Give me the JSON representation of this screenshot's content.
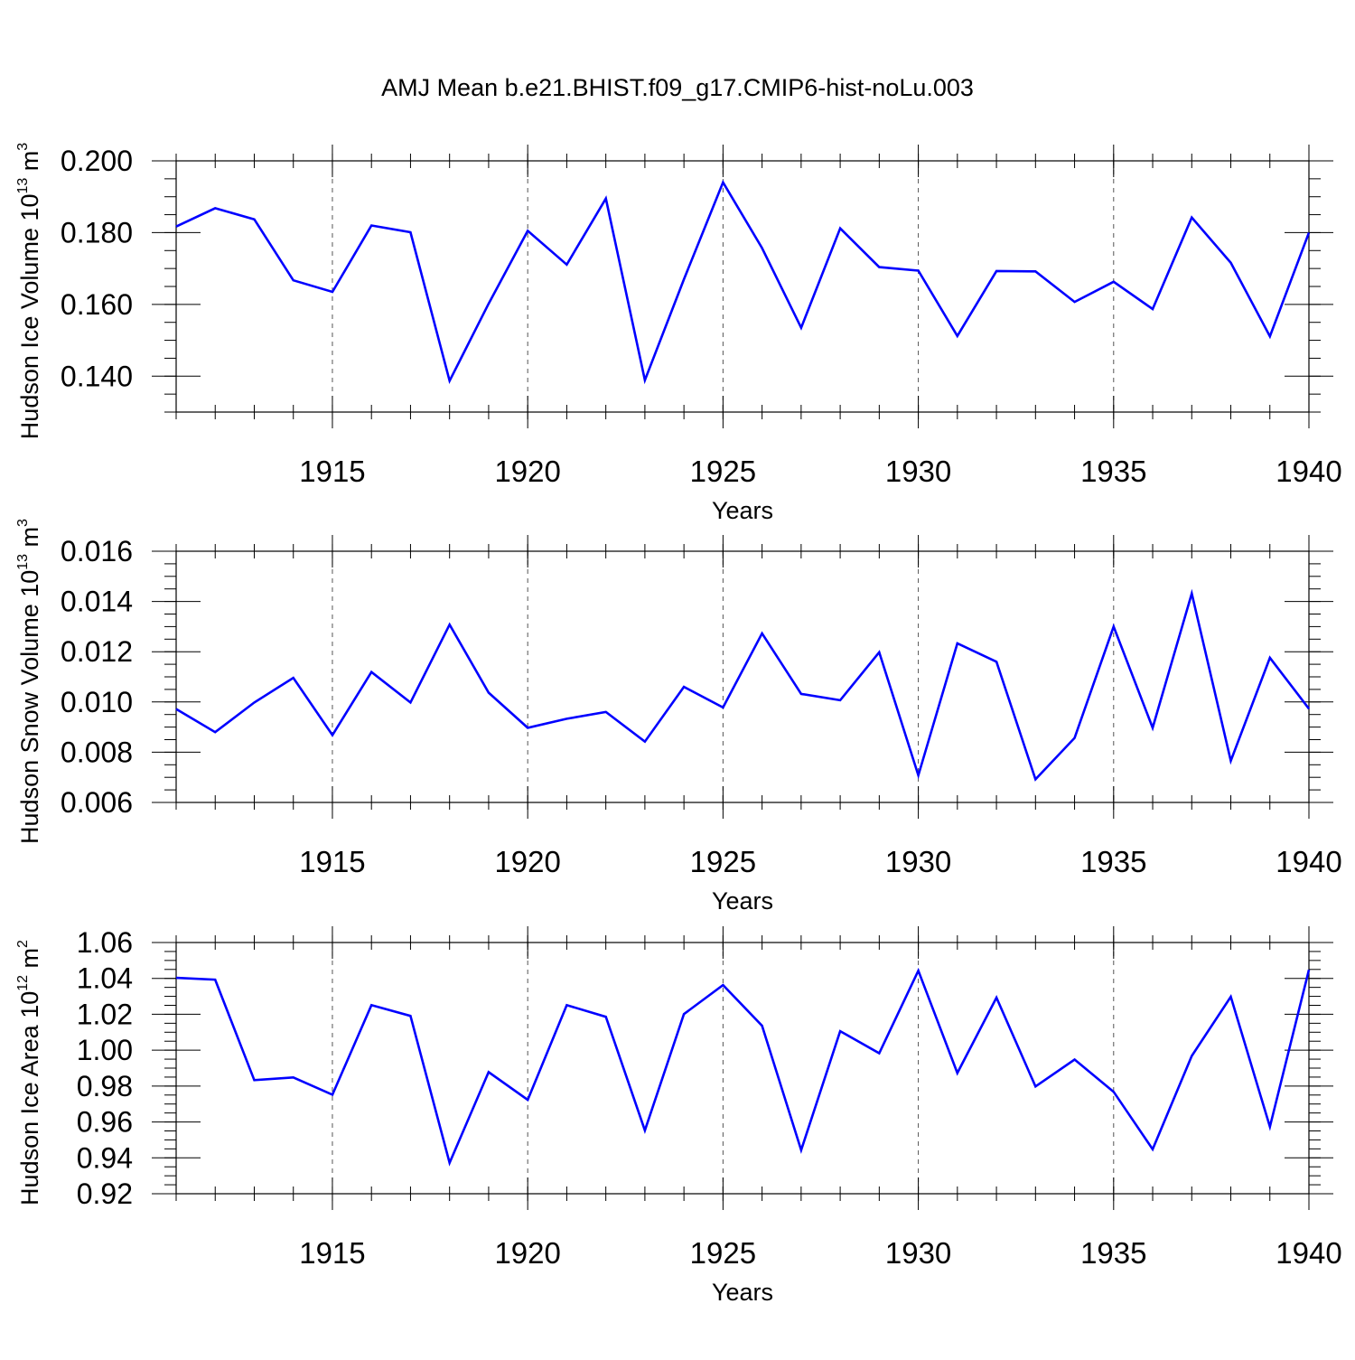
{
  "figure_title": "AMJ Mean b.e21.BHIST.f09_g17.CMIP6-hist-noLu.003",
  "line_color": "#0000ff",
  "grid_color": "#555555",
  "chart_data": [
    {
      "type": "line",
      "ylabel": "Hudson Ice Volume 10",
      "ylabel_exp": "13",
      "ylabel_unit": " m",
      "ylabel_unit_exp": "3",
      "xlabel": "Years",
      "xlim": [
        1911,
        1940
      ],
      "ylim": [
        0.13,
        0.2
      ],
      "x_ticks": [
        1915,
        1920,
        1925,
        1930,
        1935,
        1940
      ],
      "x_tick_labels": [
        "1915",
        "1920",
        "1925",
        "1930",
        "1935",
        "1940"
      ],
      "y_ticks": [
        0.14,
        0.16,
        0.18,
        0.2
      ],
      "y_tick_labels": [
        "0.140",
        "0.160",
        "0.180",
        "0.200"
      ],
      "y_minor_step": 0.005,
      "grid": "vertical dashed at major x ticks",
      "x": [
        1911,
        1912,
        1913,
        1914,
        1915,
        1916,
        1917,
        1918,
        1919,
        1920,
        1921,
        1922,
        1923,
        1924,
        1925,
        1926,
        1927,
        1928,
        1929,
        1930,
        1931,
        1932,
        1933,
        1934,
        1935,
        1936,
        1937,
        1938,
        1939,
        1940
      ],
      "values": [
        0.1817,
        0.1868,
        0.1837,
        0.1667,
        0.1635,
        0.182,
        0.1801,
        0.1387,
        0.1602,
        0.1805,
        0.1711,
        0.1895,
        0.1389,
        0.167,
        0.194,
        0.1757,
        0.1535,
        0.1812,
        0.1704,
        0.1694,
        0.1512,
        0.1693,
        0.1692,
        0.1607,
        0.1663,
        0.1587,
        0.1842,
        0.1716,
        0.1511,
        0.18
      ]
    },
    {
      "type": "line",
      "ylabel": "Hudson Snow Volume 10",
      "ylabel_exp": "13",
      "ylabel_unit": " m",
      "ylabel_unit_exp": "3",
      "xlabel": "Years",
      "xlim": [
        1911,
        1940
      ],
      "ylim": [
        0.006,
        0.016
      ],
      "x_ticks": [
        1915,
        1920,
        1925,
        1930,
        1935,
        1940
      ],
      "x_tick_labels": [
        "1915",
        "1920",
        "1925",
        "1930",
        "1935",
        "1940"
      ],
      "y_ticks": [
        0.006,
        0.008,
        0.01,
        0.012,
        0.014,
        0.016
      ],
      "y_tick_labels": [
        "0.006",
        "0.008",
        "0.010",
        "0.012",
        "0.014",
        "0.016"
      ],
      "y_minor_step": 0.0005,
      "grid": "vertical dashed at major x ticks",
      "x": [
        1911,
        1912,
        1913,
        1914,
        1915,
        1916,
        1917,
        1918,
        1919,
        1920,
        1921,
        1922,
        1923,
        1924,
        1925,
        1926,
        1927,
        1928,
        1929,
        1930,
        1931,
        1932,
        1933,
        1934,
        1935,
        1936,
        1937,
        1938,
        1939,
        1940
      ],
      "values": [
        0.00972,
        0.0088,
        0.00998,
        0.01096,
        0.00868,
        0.01119,
        0.00998,
        0.01308,
        0.01037,
        0.00897,
        0.00933,
        0.0096,
        0.00842,
        0.0106,
        0.00978,
        0.01273,
        0.01032,
        0.01007,
        0.01198,
        0.00708,
        0.01233,
        0.0116,
        0.00692,
        0.00857,
        0.013,
        0.00897,
        0.01432,
        0.00766,
        0.01176,
        0.00973
      ]
    },
    {
      "type": "line",
      "ylabel": "Hudson Ice Area 10",
      "ylabel_exp": "12",
      "ylabel_unit": " m",
      "ylabel_unit_exp": "2",
      "xlabel": "Years",
      "xlim": [
        1911,
        1940
      ],
      "ylim": [
        0.92,
        1.06
      ],
      "x_ticks": [
        1915,
        1920,
        1925,
        1930,
        1935,
        1940
      ],
      "x_tick_labels": [
        "1915",
        "1920",
        "1925",
        "1930",
        "1935",
        "1940"
      ],
      "y_ticks": [
        0.92,
        0.94,
        0.96,
        0.98,
        1.0,
        1.02,
        1.04,
        1.06
      ],
      "y_tick_labels": [
        "0.92",
        "0.94",
        "0.96",
        "0.98",
        "1.00",
        "1.02",
        "1.04",
        "1.06"
      ],
      "y_minor_step": 0.005,
      "grid": "vertical dashed at major x ticks",
      "x": [
        1911,
        1912,
        1913,
        1914,
        1915,
        1916,
        1917,
        1918,
        1919,
        1920,
        1921,
        1922,
        1923,
        1924,
        1925,
        1926,
        1927,
        1928,
        1929,
        1930,
        1931,
        1932,
        1933,
        1934,
        1935,
        1936,
        1937,
        1938,
        1939,
        1940
      ],
      "values": [
        1.0403,
        1.0393,
        0.9833,
        0.9848,
        0.9752,
        1.0251,
        1.0191,
        0.9372,
        0.9878,
        0.9723,
        1.0251,
        1.0186,
        0.9553,
        1.0201,
        1.0363,
        1.0136,
        0.9443,
        1.0106,
        0.9983,
        1.0443,
        0.9873,
        1.0293,
        0.9798,
        0.9948,
        0.9768,
        0.9448,
        0.9968,
        1.0298,
        0.9573,
        1.0448
      ]
    }
  ]
}
